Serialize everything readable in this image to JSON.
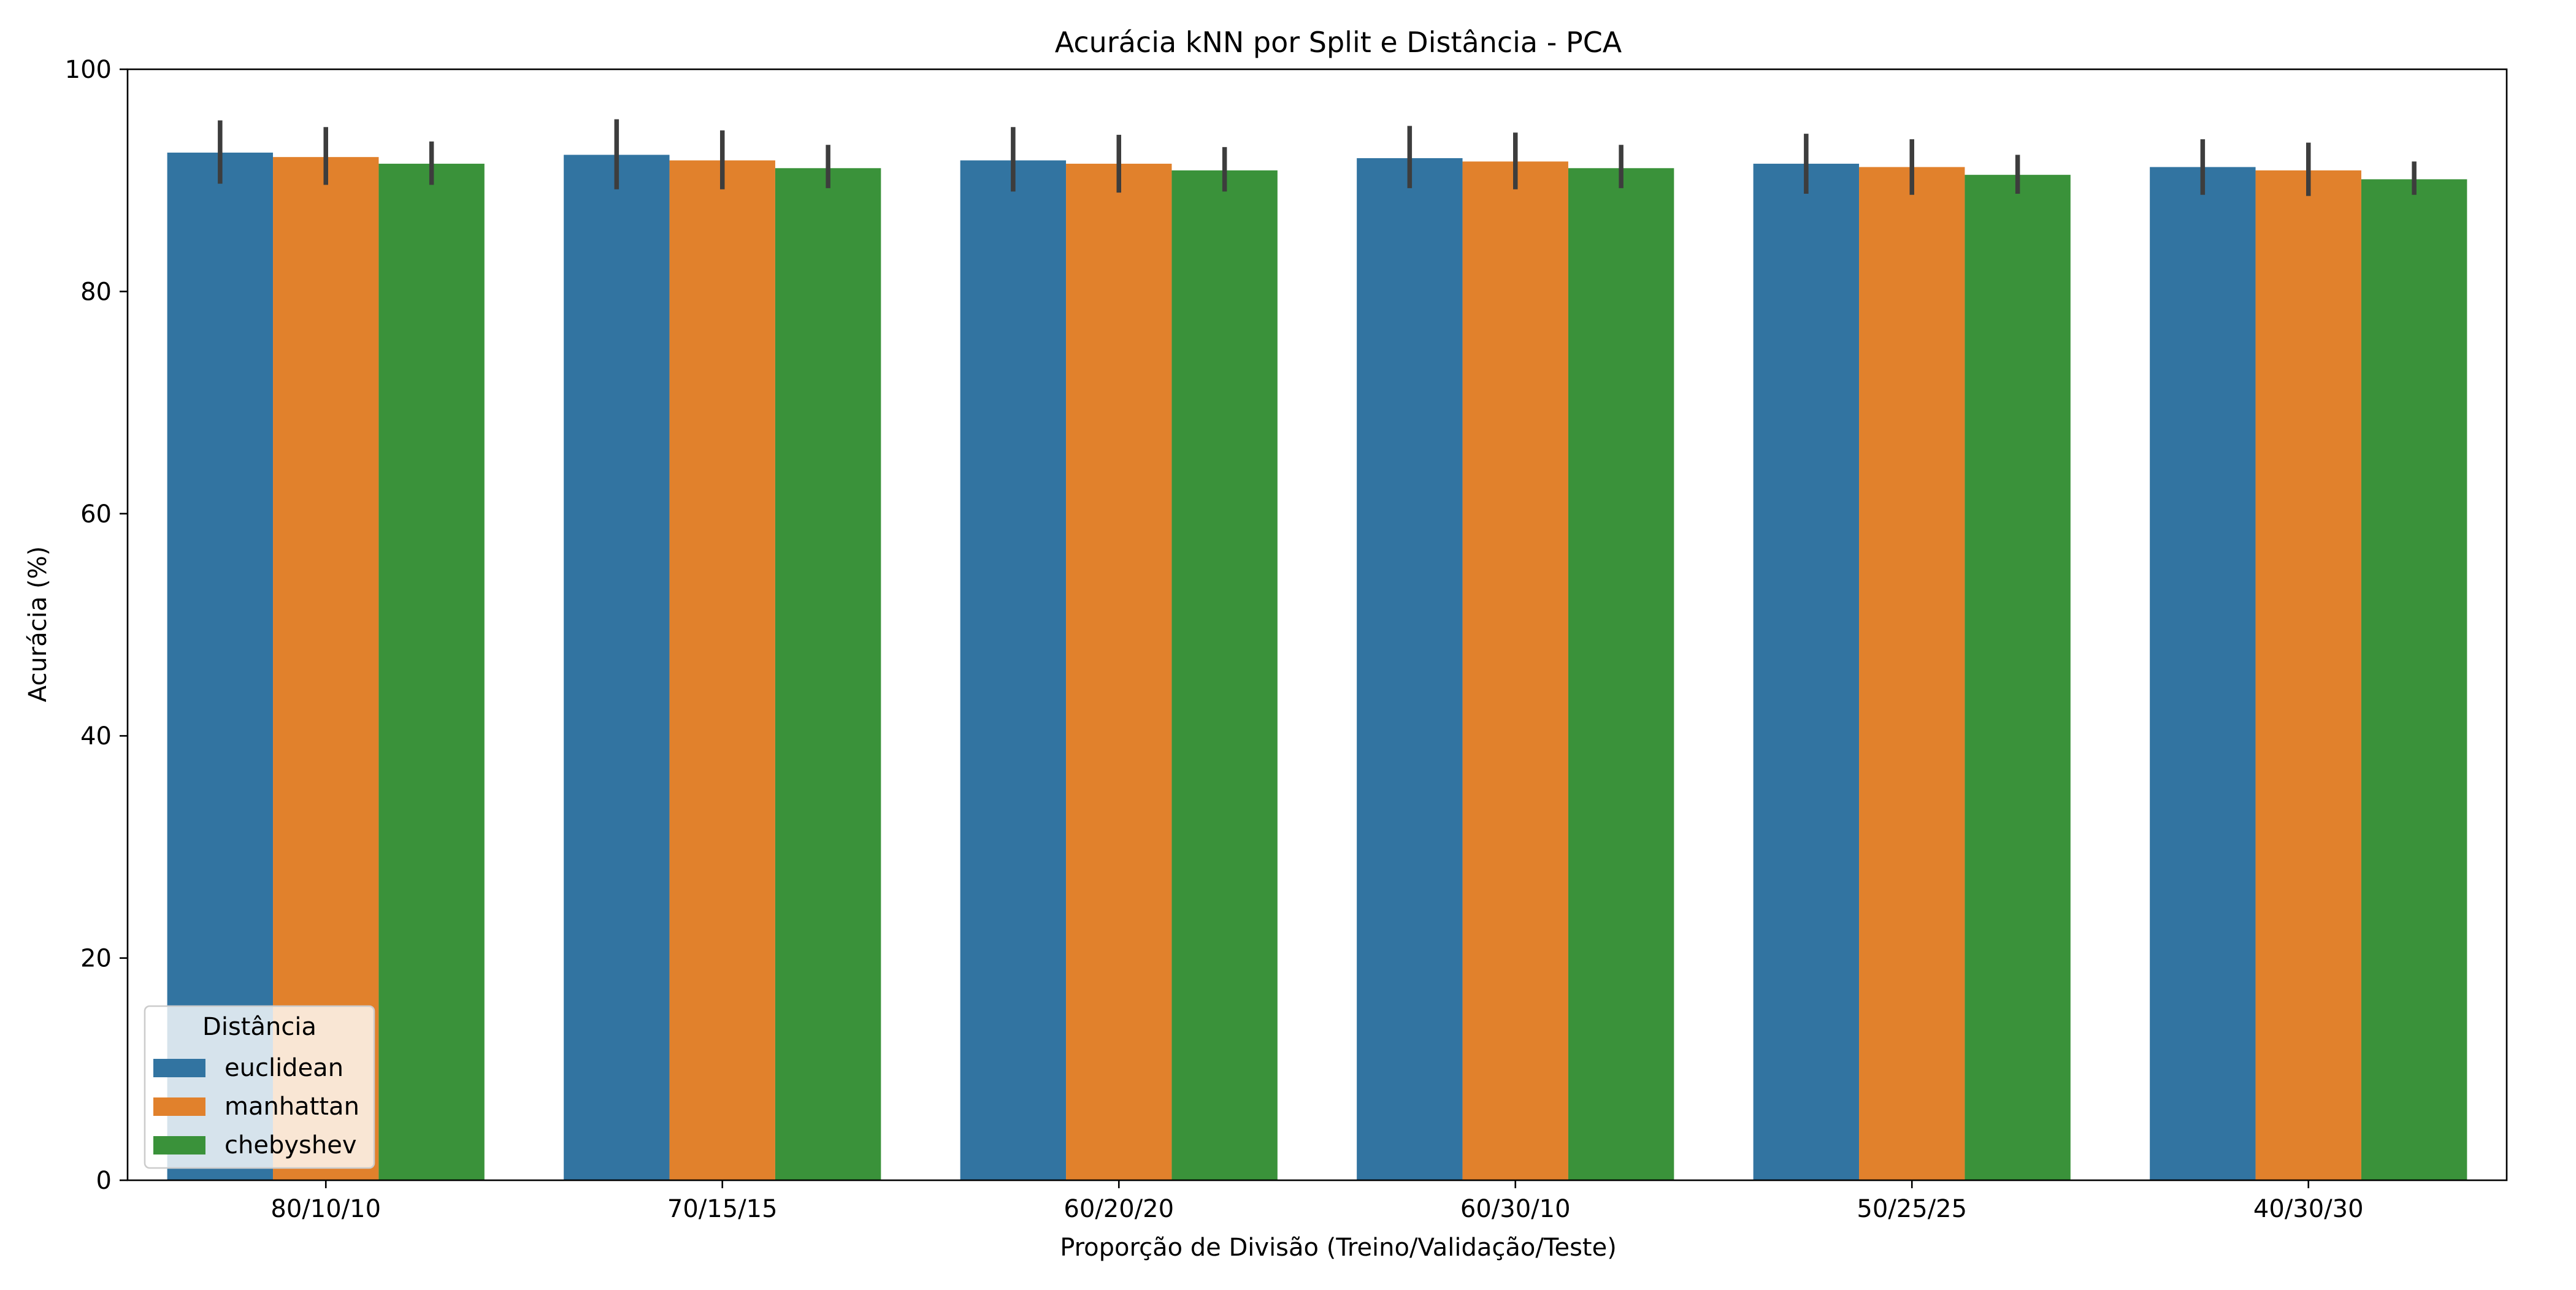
{
  "chart_data": {
    "type": "bar",
    "title": "Acurácia kNN por Split e Distância - PCA",
    "xlabel": "Proporção de Divisão (Treino/Validação/Teste)",
    "ylabel": "Acurácia (%)",
    "ylim": [
      0,
      100
    ],
    "yticks": [
      0,
      20,
      40,
      60,
      80,
      100
    ],
    "grid": false,
    "legend_position": "lower-left",
    "legend_title": "Distância",
    "categories": [
      "80/10/10",
      "70/15/15",
      "60/20/20",
      "60/30/10",
      "50/25/25",
      "40/30/30"
    ],
    "series": [
      {
        "name": "euclidean",
        "color": "#3274a1",
        "values": [
          92.5,
          92.3,
          91.8,
          92.0,
          91.5,
          91.2
        ],
        "error_low": [
          89.7,
          89.2,
          89.0,
          89.3,
          88.8,
          88.7
        ],
        "error_high": [
          95.4,
          95.5,
          94.8,
          94.9,
          94.2,
          93.7
        ]
      },
      {
        "name": "manhattan",
        "color": "#e1812c",
        "values": [
          92.1,
          91.8,
          91.5,
          91.7,
          91.2,
          90.9
        ],
        "error_low": [
          89.6,
          89.2,
          88.9,
          89.2,
          88.7,
          88.6
        ],
        "error_high": [
          94.8,
          94.5,
          94.1,
          94.3,
          93.7,
          93.4
        ]
      },
      {
        "name": "chebyshev",
        "color": "#3a923a",
        "values": [
          91.5,
          91.1,
          90.9,
          91.1,
          90.5,
          90.1
        ],
        "error_low": [
          89.6,
          89.3,
          89.0,
          89.3,
          88.8,
          88.7
        ],
        "error_high": [
          93.5,
          93.2,
          93.0,
          93.2,
          92.3,
          91.7
        ]
      }
    ]
  }
}
